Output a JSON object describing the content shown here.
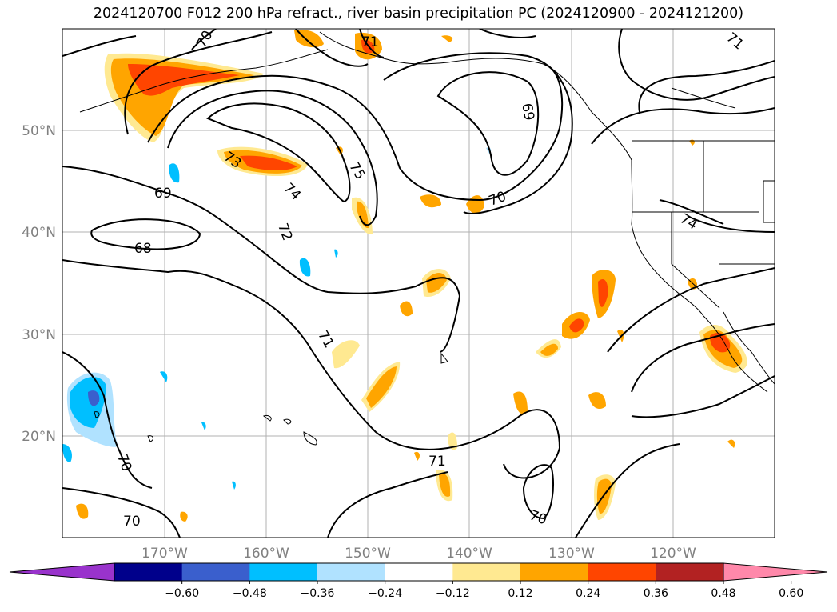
{
  "title": "2024120700 F012 200 hPa refract., river basin precipitation PC (2024120900 - 2024121200)",
  "map": {
    "lat_labels": [
      "50°N",
      "40°N",
      "30°N",
      "20°N"
    ],
    "lon_labels": [
      "170°W",
      "160°W",
      "150°W",
      "140°W",
      "130°W",
      "120°W"
    ],
    "grid_color": "#b0b0b0",
    "label_color": "#808080"
  },
  "contour_labels": [
    "70",
    "71",
    "69",
    "73",
    "75",
    "74",
    "72",
    "68",
    "69",
    "70",
    "74",
    "71",
    "70",
    "71",
    "70",
    "70"
  ],
  "colorbar": {
    "colors": [
      "#9933cc",
      "#00008b",
      "#3a5fcd",
      "#00bfff",
      "#b0e2ff",
      "#ffffff",
      "#ffe991",
      "#ffa500",
      "#ff4500",
      "#b22222",
      "#ff88aa"
    ],
    "tick_labels": [
      "−0.60",
      "−0.48",
      "−0.36",
      "−0.24",
      "−0.12",
      "0.12",
      "0.24",
      "0.36",
      "0.48",
      "0.60"
    ]
  }
}
